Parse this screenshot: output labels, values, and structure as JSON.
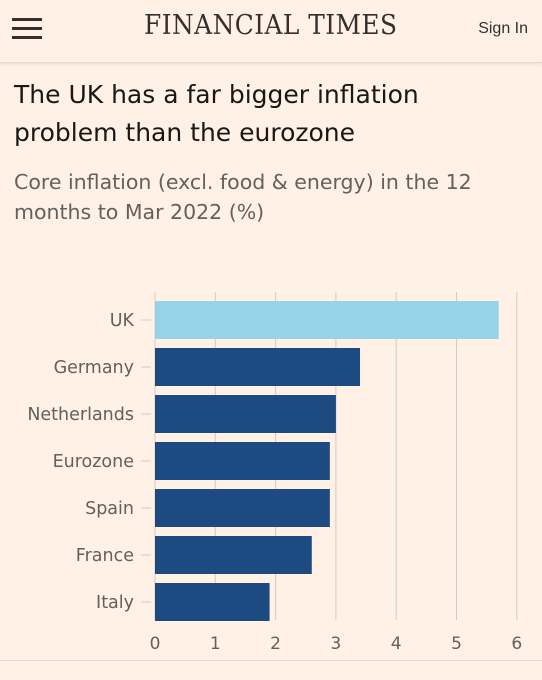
{
  "header": {
    "masthead": "FINANCIAL TIMES",
    "sign_in_label": "Sign In",
    "menu_icon": "hamburger-menu-icon"
  },
  "article": {
    "title": "The UK has a far bigger inflation problem than the eurozone",
    "subtitle": "Core inflation (excl. food & energy) in the 12 months to Mar 2022 (%)"
  },
  "colors": {
    "background": "#fff1e5",
    "highlight_bar": "#96d3e8",
    "default_bar": "#1e4a82",
    "gridline": "#d9c9b9",
    "text": "#66605c"
  },
  "chart_data": {
    "type": "bar",
    "orientation": "horizontal",
    "categories": [
      "UK",
      "Germany",
      "Netherlands",
      "Eurozone",
      "Spain",
      "France",
      "Italy"
    ],
    "values": [
      5.7,
      3.4,
      3.0,
      2.9,
      2.9,
      2.6,
      1.9
    ],
    "highlight": "UK",
    "xlim": [
      0,
      6
    ],
    "xticks": [
      "0",
      "1",
      "2",
      "3",
      "4",
      "5",
      "6"
    ],
    "grid": true,
    "xlabel": "",
    "ylabel": ""
  }
}
